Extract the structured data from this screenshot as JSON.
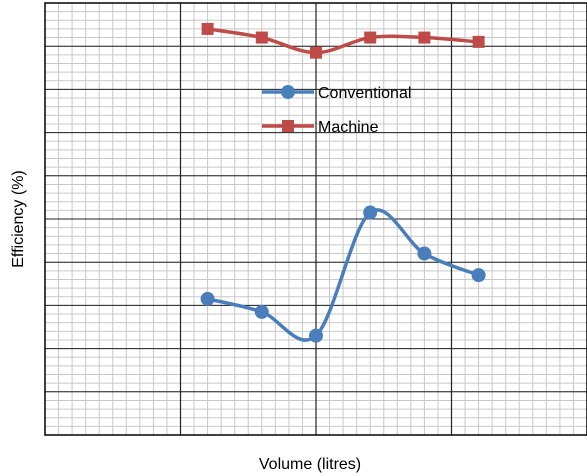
{
  "chart_data": {
    "type": "line",
    "title": "",
    "xlabel": "Volume (litres)",
    "ylabel": "Efficiency (%)",
    "xlim": [
      0,
      10
    ],
    "ylim": [
      0,
      10
    ],
    "grid": {
      "major": true,
      "minor": true
    },
    "legend_position": "center",
    "x": [
      3,
      4,
      5,
      6,
      7,
      8
    ],
    "series": [
      {
        "name": "Conventional",
        "color": "#4a7ebb",
        "marker": "circle",
        "values": [
          3.15,
          2.85,
          2.3,
          5.15,
          4.2,
          3.7
        ]
      },
      {
        "name": "Machine",
        "color": "#be4b48",
        "marker": "square",
        "values": [
          9.4,
          9.2,
          8.85,
          9.2,
          9.2,
          9.1
        ]
      }
    ]
  }
}
